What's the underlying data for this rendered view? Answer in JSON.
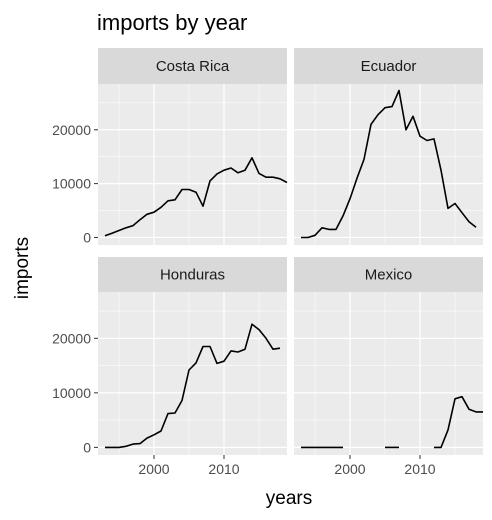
{
  "chart_data": {
    "type": "line",
    "title": "imports by year",
    "xlabel": "years",
    "ylabel": "imports",
    "facet_layout": "2x2 grid, shared axes",
    "xlim": [
      1992,
      2019
    ],
    "ylim": [
      -1400,
      28500
    ],
    "x_ticks": [
      2000,
      2010
    ],
    "y_ticks": [
      0,
      10000,
      20000
    ],
    "grid": true,
    "colors": {
      "panel_background": "#ebebeb",
      "grid_major": "#ffffff",
      "strip_background": "#d9d9d9",
      "line": "#000000"
    },
    "series": [
      {
        "name": "Costa Rica",
        "points": [
          [
            1993,
            300
          ],
          [
            1994,
            800
          ],
          [
            1995,
            1300
          ],
          [
            1996,
            1800
          ],
          [
            1997,
            2200
          ],
          [
            1998,
            3300
          ],
          [
            1999,
            4300
          ],
          [
            2000,
            4700
          ],
          [
            2001,
            5600
          ],
          [
            2002,
            6800
          ],
          [
            2003,
            7000
          ],
          [
            2004,
            8900
          ],
          [
            2005,
            8900
          ],
          [
            2006,
            8400
          ],
          [
            2007,
            5800
          ],
          [
            2008,
            10500
          ],
          [
            2009,
            11800
          ],
          [
            2010,
            12500
          ],
          [
            2011,
            12900
          ],
          [
            2012,
            12000
          ],
          [
            2013,
            12500
          ],
          [
            2014,
            14800
          ],
          [
            2015,
            11900
          ],
          [
            2016,
            11200
          ],
          [
            2017,
            11200
          ],
          [
            2018,
            10900
          ],
          [
            2019,
            10200
          ]
        ]
      },
      {
        "name": "Ecuador",
        "points": [
          [
            1993,
            0
          ],
          [
            1994,
            0
          ],
          [
            1995,
            400
          ],
          [
            1996,
            1800
          ],
          [
            1997,
            1500
          ],
          [
            1998,
            1500
          ],
          [
            1999,
            4000
          ],
          [
            2000,
            7200
          ],
          [
            2001,
            11000
          ],
          [
            2002,
            14500
          ],
          [
            2003,
            21000
          ],
          [
            2004,
            22800
          ],
          [
            2005,
            24100
          ],
          [
            2006,
            24300
          ],
          [
            2007,
            27300
          ],
          [
            2008,
            20000
          ],
          [
            2009,
            22500
          ],
          [
            2010,
            18800
          ],
          [
            2011,
            18000
          ],
          [
            2012,
            18300
          ],
          [
            2013,
            12500
          ],
          [
            2014,
            5400
          ],
          [
            2015,
            6300
          ],
          [
            2016,
            4600
          ],
          [
            2017,
            2900
          ],
          [
            2018,
            1900
          ]
        ]
      },
      {
        "name": "Honduras",
        "points": [
          [
            1993,
            0
          ],
          [
            1994,
            0
          ],
          [
            1995,
            0
          ],
          [
            1996,
            200
          ],
          [
            1997,
            600
          ],
          [
            1998,
            700
          ],
          [
            1999,
            1700
          ],
          [
            2000,
            2300
          ],
          [
            2001,
            3000
          ],
          [
            2002,
            6200
          ],
          [
            2003,
            6300
          ],
          [
            2004,
            8600
          ],
          [
            2005,
            14200
          ],
          [
            2006,
            15500
          ],
          [
            2007,
            18500
          ],
          [
            2008,
            18500
          ],
          [
            2009,
            15400
          ],
          [
            2010,
            15800
          ],
          [
            2011,
            17700
          ],
          [
            2012,
            17500
          ],
          [
            2013,
            18000
          ],
          [
            2014,
            22600
          ],
          [
            2015,
            21600
          ],
          [
            2016,
            20000
          ],
          [
            2017,
            18000
          ],
          [
            2018,
            18200
          ]
        ]
      },
      {
        "name": "Mexico",
        "segments": [
          [
            [
              1993,
              0
            ],
            [
              1994,
              0
            ],
            [
              1995,
              0
            ],
            [
              1996,
              0
            ],
            [
              1997,
              0
            ],
            [
              1998,
              0
            ],
            [
              1999,
              0
            ]
          ],
          [
            [
              2005,
              0
            ],
            [
              2006,
              0
            ],
            [
              2007,
              0
            ]
          ],
          [
            [
              2012,
              0
            ],
            [
              2013,
              0
            ],
            [
              2014,
              3200
            ],
            [
              2015,
              8900
            ],
            [
              2016,
              9300
            ],
            [
              2017,
              7000
            ],
            [
              2018,
              6500
            ],
            [
              2019,
              6500
            ]
          ]
        ]
      }
    ]
  }
}
